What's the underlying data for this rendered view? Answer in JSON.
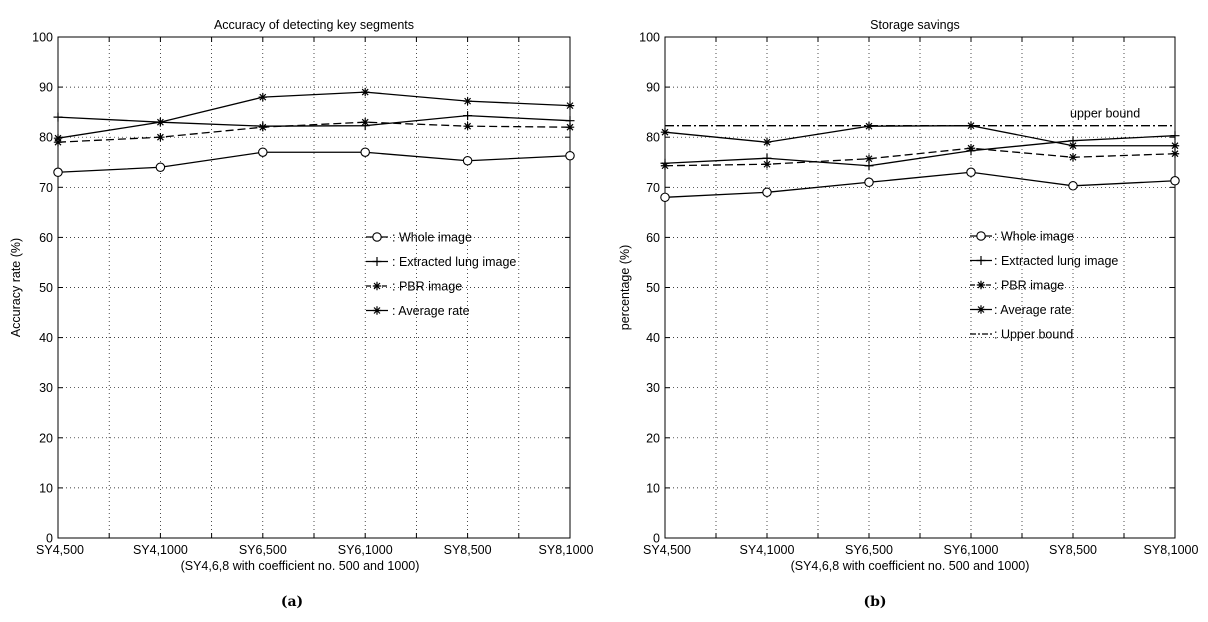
{
  "chart_data": [
    {
      "type": "line",
      "panel_label": "(a)",
      "title": "Accuracy of detecting key segments",
      "xlabel": "(SY4,6,8 with coefficient no. 500 and 1000)",
      "ylabel": "Accuracy rate (%)",
      "categories": [
        "SY4,500",
        "SY4,1000",
        "SY6,500",
        "SY6,1000",
        "SY8,500",
        "SY8,1000"
      ],
      "ylim": [
        0,
        100
      ],
      "yticks": [
        0,
        10,
        20,
        30,
        40,
        50,
        60,
        70,
        80,
        90,
        100
      ],
      "grid": true,
      "legend_position": "center-right",
      "series": [
        {
          "name": "Whole image",
          "legend_text": "-o- : Whole image",
          "style": "solid",
          "marker": "circle",
          "values": [
            73,
            74,
            77,
            77,
            75.3,
            76.3
          ]
        },
        {
          "name": "Extracted lung image",
          "legend_text": "-+- : Extracted lung image",
          "style": "solid",
          "marker": "plus",
          "values": [
            84,
            83,
            82.2,
            82.3,
            84.3,
            83.3
          ]
        },
        {
          "name": "PBR image",
          "legend_text": "-*- : PBR image",
          "style": "dashed",
          "marker": "star",
          "values": [
            79,
            80,
            82,
            83,
            82.2,
            82
          ]
        },
        {
          "name": "Average rate",
          "legend_text": "— : Average rate",
          "style": "solid",
          "marker": "star",
          "values": [
            79.8,
            83,
            88,
            89,
            87.2,
            86.3
          ]
        }
      ]
    },
    {
      "type": "line",
      "panel_label": "(b)",
      "title": "Storage savings",
      "xlabel": "(SY4,6,8 with coefficient no. 500 and 1000)",
      "ylabel": "percentage (%)",
      "categories": [
        "SY4,500",
        "SY4,1000",
        "SY6,500",
        "SY6,1000",
        "SY8,500",
        "SY8,1000"
      ],
      "ylim": [
        0,
        100
      ],
      "yticks": [
        0,
        10,
        20,
        30,
        40,
        50,
        60,
        70,
        80,
        90,
        100
      ],
      "grid": true,
      "legend_position": "center-right",
      "annotation": "upper bound",
      "series": [
        {
          "name": "Whole image",
          "legend_text": "-o- : Whole image",
          "style": "solid",
          "marker": "circle",
          "values": [
            68,
            69,
            71,
            73,
            70.3,
            71.3
          ]
        },
        {
          "name": "Extracted lung image",
          "legend_text": "-+- : Extracted lung image",
          "style": "solid",
          "marker": "plus",
          "values": [
            74.8,
            75.8,
            74.3,
            77.3,
            79.3,
            80.3
          ]
        },
        {
          "name": "PBR image",
          "legend_text": "-*- : PBR image",
          "style": "dashed",
          "marker": "star",
          "values": [
            74.3,
            74.6,
            75.7,
            77.8,
            76,
            76.7
          ]
        },
        {
          "name": "Average rate",
          "legend_text": "— : Average rate",
          "style": "solid",
          "marker": "star",
          "values": [
            81,
            79,
            82.2,
            82.3,
            78.3,
            78.3
          ]
        },
        {
          "name": "Upper bound",
          "legend_text": "-·- : Upper bound",
          "style": "dashdot",
          "marker": "none",
          "values": [
            82.3,
            82.3,
            82.3,
            82.3,
            82.3,
            82.3
          ]
        }
      ]
    }
  ]
}
